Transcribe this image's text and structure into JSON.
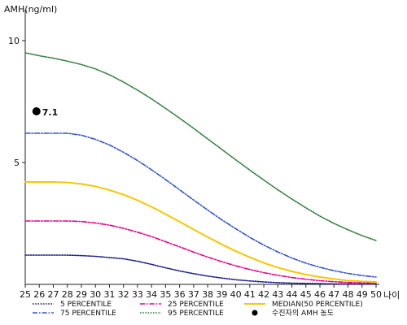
{
  "chart_data": {
    "type": "line",
    "title": "",
    "ylabel": "AMH(ng/ml)",
    "xlabel": "나이",
    "ylim": [
      0,
      11
    ],
    "xlim": [
      25,
      50
    ],
    "yticks": [
      5,
      10
    ],
    "xticks": [
      25,
      26,
      27,
      28,
      29,
      30,
      31,
      32,
      33,
      34,
      35,
      36,
      37,
      38,
      39,
      40,
      41,
      42,
      43,
      44,
      45,
      46,
      47,
      48,
      49,
      50
    ],
    "grid": false,
    "legend_position": "bottom",
    "x": [
      25,
      26,
      27,
      28,
      29,
      30,
      31,
      32,
      33,
      34,
      35,
      36,
      37,
      38,
      39,
      40,
      41,
      42,
      43,
      44,
      45,
      46,
      47,
      48,
      49,
      50
    ],
    "series": [
      {
        "name": "5 PERCENTILE",
        "color": "#1a1a8c",
        "style": "dotted",
        "values": [
          1.2,
          1.2,
          1.2,
          1.2,
          1.18,
          1.15,
          1.1,
          1.05,
          0.95,
          0.82,
          0.68,
          0.55,
          0.44,
          0.34,
          0.26,
          0.19,
          0.14,
          0.1,
          0.07,
          0.05,
          0.04,
          0.03,
          0.02,
          0.02,
          0.01,
          0.01
        ]
      },
      {
        "name": "25 PERCENTILE",
        "color": "#e6008c",
        "style": "dashdot",
        "values": [
          2.6,
          2.6,
          2.6,
          2.6,
          2.58,
          2.52,
          2.43,
          2.3,
          2.14,
          1.96,
          1.75,
          1.54,
          1.32,
          1.12,
          0.93,
          0.76,
          0.61,
          0.48,
          0.37,
          0.28,
          0.21,
          0.15,
          0.11,
          0.08,
          0.06,
          0.05
        ]
      },
      {
        "name": "MEDIAN(50 PERCENTILE)",
        "color": "#f5c800",
        "style": "solid",
        "values": [
          4.2,
          4.2,
          4.2,
          4.18,
          4.12,
          4.02,
          3.87,
          3.68,
          3.45,
          3.18,
          2.88,
          2.57,
          2.25,
          1.94,
          1.64,
          1.36,
          1.11,
          0.88,
          0.69,
          0.53,
          0.4,
          0.3,
          0.22,
          0.16,
          0.12,
          0.1
        ]
      },
      {
        "name": "75 PERCENTILE",
        "color": "#3355cc",
        "style": "dashdot",
        "values": [
          6.2,
          6.2,
          6.2,
          6.2,
          6.12,
          5.95,
          5.72,
          5.42,
          5.08,
          4.7,
          4.3,
          3.88,
          3.46,
          3.05,
          2.65,
          2.28,
          1.93,
          1.61,
          1.33,
          1.08,
          0.87,
          0.7,
          0.56,
          0.45,
          0.36,
          0.3
        ]
      },
      {
        "name": "95 PERCENTILE",
        "color": "#2e7d3a",
        "style": "dotted",
        "values": [
          9.5,
          9.38,
          9.28,
          9.16,
          9.02,
          8.84,
          8.6,
          8.3,
          7.97,
          7.61,
          7.22,
          6.82,
          6.4,
          5.97,
          5.54,
          5.11,
          4.69,
          4.28,
          3.88,
          3.5,
          3.14,
          2.8,
          2.5,
          2.24,
          2.0,
          1.8
        ]
      }
    ],
    "patient_marker": {
      "name": "수진자의 AMH 농도",
      "x": 25.8,
      "y": 7.1,
      "label": "7.1",
      "color": "#000000"
    }
  }
}
